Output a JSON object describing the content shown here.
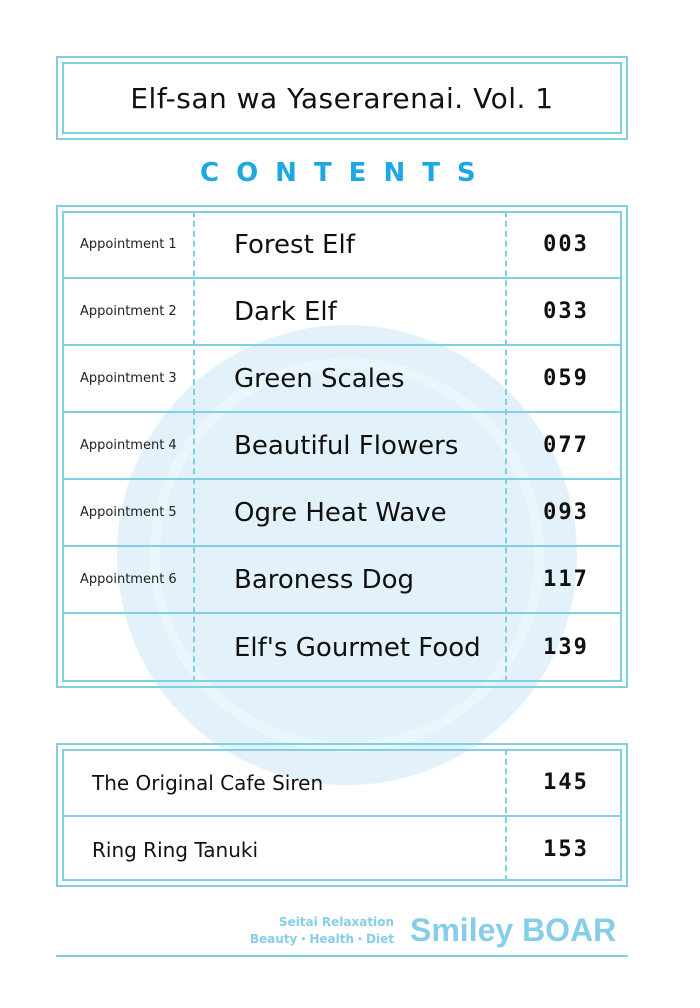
{
  "title": "Elf-san wa Yaserarenai. Vol. 1",
  "heading": "CONTENTS",
  "chapters": [
    {
      "label": "Appointment 1",
      "title": "Forest Elf",
      "page": "003"
    },
    {
      "label": "Appointment 2",
      "title": "Dark Elf",
      "page": "033"
    },
    {
      "label": "Appointment 3",
      "title": "Green Scales",
      "page": "059"
    },
    {
      "label": "Appointment 4",
      "title": "Beautiful Flowers",
      "page": "077"
    },
    {
      "label": "Appointment 5",
      "title": "Ogre Heat Wave",
      "page": "093"
    },
    {
      "label": "Appointment 6",
      "title": "Baroness Dog",
      "page": "117"
    },
    {
      "label": "",
      "title": "Elf's Gourmet Food",
      "page": "139"
    }
  ],
  "extras": [
    {
      "title": "The Original Cafe Siren",
      "page": "145"
    },
    {
      "title": "Ring Ring Tanuki",
      "page": "153"
    }
  ],
  "footer": {
    "line1": "Seitai Relaxation",
    "line2": "Beauty・Health・Diet",
    "brand": "Smiley BOAR"
  },
  "watermark": "boar-face-logo",
  "colors": {
    "accent": "#1ea8e2",
    "border": "#7fd0e2",
    "footer": "#86cde9"
  }
}
